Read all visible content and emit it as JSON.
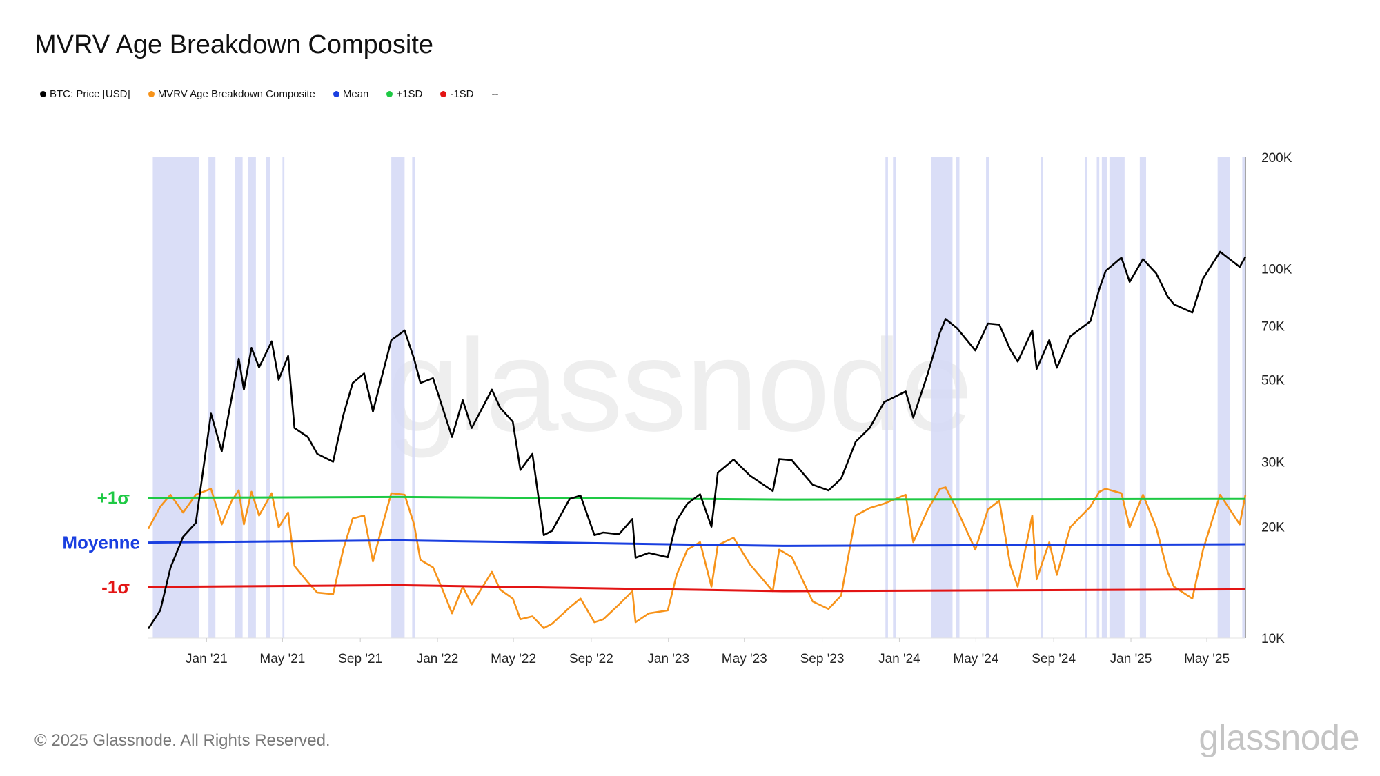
{
  "title": "MVRV Age Breakdown Composite",
  "legend": [
    {
      "label": "BTC: Price [USD]",
      "color": "#000000"
    },
    {
      "label": "MVRV Age Breakdown Composite",
      "color": "#f7931a"
    },
    {
      "label": "Mean",
      "color": "#1a3fe0"
    },
    {
      "label": "+1SD",
      "color": "#1ec944"
    },
    {
      "label": "-1SD",
      "color": "#e31414"
    },
    {
      "label": "--",
      "color": ""
    }
  ],
  "annotations": {
    "plus_sigma": "+1σ",
    "mean": "Moyenne",
    "minus_sigma": "-1σ"
  },
  "footer": "© 2025 Glassnode. All Rights Reserved.",
  "brand": "glassnode",
  "watermark": "glassnode",
  "chart_data": {
    "type": "line",
    "x_range": [
      "2020-10-01",
      "2025-07-01"
    ],
    "x_ticks": [
      {
        "label": "Jan '21",
        "date": "2021-01-01"
      },
      {
        "label": "May '21",
        "date": "2021-05-01"
      },
      {
        "label": "Sep '21",
        "date": "2021-09-01"
      },
      {
        "label": "Jan '22",
        "date": "2022-01-01"
      },
      {
        "label": "May '22",
        "date": "2022-05-01"
      },
      {
        "label": "Sep '22",
        "date": "2022-09-01"
      },
      {
        "label": "Jan '23",
        "date": "2023-01-01"
      },
      {
        "label": "May '23",
        "date": "2023-05-01"
      },
      {
        "label": "Sep '23",
        "date": "2023-09-01"
      },
      {
        "label": "Jan '24",
        "date": "2024-01-01"
      },
      {
        "label": "May '24",
        "date": "2024-05-01"
      },
      {
        "label": "Sep '24",
        "date": "2024-09-01"
      },
      {
        "label": "Jan '25",
        "date": "2025-01-01"
      },
      {
        "label": "May '25",
        "date": "2025-05-01"
      }
    ],
    "y_axis_right": {
      "scale": "log",
      "range": [
        10000,
        200000
      ],
      "ticks": [
        {
          "label": "200K",
          "value": 200000
        },
        {
          "label": "100K",
          "value": 100000
        },
        {
          "label": "70K",
          "value": 70000
        },
        {
          "label": "50K",
          "value": 50000
        },
        {
          "label": "30K",
          "value": 30000
        },
        {
          "label": "20K",
          "value": 20000
        },
        {
          "label": "10K",
          "value": 10000
        }
      ]
    },
    "composite_scale": {
      "min": 0,
      "max": 1
    },
    "series": [
      {
        "name": "BTC: Price [USD]",
        "color": "#000000",
        "points": [
          [
            "2020-10-01",
            10600
          ],
          [
            "2020-10-20",
            11900
          ],
          [
            "2020-11-05",
            15500
          ],
          [
            "2020-11-25",
            18800
          ],
          [
            "2020-12-15",
            20500
          ],
          [
            "2021-01-08",
            40500
          ],
          [
            "2021-01-25",
            32000
          ],
          [
            "2021-02-10",
            45000
          ],
          [
            "2021-02-21",
            57000
          ],
          [
            "2021-03-01",
            47000
          ],
          [
            "2021-03-13",
            61000
          ],
          [
            "2021-03-25",
            54000
          ],
          [
            "2021-04-14",
            63500
          ],
          [
            "2021-04-25",
            50000
          ],
          [
            "2021-05-10",
            58000
          ],
          [
            "2021-05-20",
            37000
          ],
          [
            "2021-06-10",
            35000
          ],
          [
            "2021-06-25",
            31500
          ],
          [
            "2021-07-20",
            30000
          ],
          [
            "2021-08-05",
            40000
          ],
          [
            "2021-08-20",
            49000
          ],
          [
            "2021-09-07",
            52000
          ],
          [
            "2021-09-21",
            41000
          ],
          [
            "2021-10-05",
            51000
          ],
          [
            "2021-10-20",
            64000
          ],
          [
            "2021-11-10",
            68000
          ],
          [
            "2021-11-25",
            57000
          ],
          [
            "2021-12-05",
            49000
          ],
          [
            "2021-12-25",
            50500
          ],
          [
            "2022-01-10",
            41500
          ],
          [
            "2022-01-24",
            35000
          ],
          [
            "2022-02-10",
            44000
          ],
          [
            "2022-02-24",
            37000
          ],
          [
            "2022-03-28",
            47000
          ],
          [
            "2022-04-10",
            42000
          ],
          [
            "2022-04-30",
            38500
          ],
          [
            "2022-05-12",
            28500
          ],
          [
            "2022-05-31",
            31500
          ],
          [
            "2022-06-18",
            19000
          ],
          [
            "2022-07-01",
            19500
          ],
          [
            "2022-07-29",
            23800
          ],
          [
            "2022-08-15",
            24300
          ],
          [
            "2022-09-06",
            19000
          ],
          [
            "2022-09-20",
            19300
          ],
          [
            "2022-10-15",
            19100
          ],
          [
            "2022-11-05",
            21000
          ],
          [
            "2022-11-10",
            16500
          ],
          [
            "2022-12-01",
            17000
          ],
          [
            "2022-12-31",
            16550
          ],
          [
            "2023-01-14",
            20800
          ],
          [
            "2023-01-31",
            23100
          ],
          [
            "2023-02-20",
            24500
          ],
          [
            "2023-03-10",
            20000
          ],
          [
            "2023-03-20",
            28000
          ],
          [
            "2023-04-14",
            30400
          ],
          [
            "2023-05-10",
            27500
          ],
          [
            "2023-06-15",
            25000
          ],
          [
            "2023-06-25",
            30500
          ],
          [
            "2023-07-15",
            30300
          ],
          [
            "2023-08-17",
            26000
          ],
          [
            "2023-09-11",
            25100
          ],
          [
            "2023-10-01",
            27000
          ],
          [
            "2023-10-24",
            34000
          ],
          [
            "2023-11-15",
            37000
          ],
          [
            "2023-12-08",
            43500
          ],
          [
            "2024-01-11",
            46500
          ],
          [
            "2024-01-23",
            39500
          ],
          [
            "2024-02-15",
            52000
          ],
          [
            "2024-03-05",
            67000
          ],
          [
            "2024-03-14",
            73000
          ],
          [
            "2024-04-01",
            69000
          ],
          [
            "2024-04-30",
            60000
          ],
          [
            "2024-05-20",
            71000
          ],
          [
            "2024-06-07",
            70500
          ],
          [
            "2024-06-24",
            60500
          ],
          [
            "2024-07-06",
            56000
          ],
          [
            "2024-07-29",
            68000
          ],
          [
            "2024-08-05",
            53500
          ],
          [
            "2024-08-25",
            64000
          ],
          [
            "2024-09-06",
            53900
          ],
          [
            "2024-09-27",
            65500
          ],
          [
            "2024-10-29",
            72000
          ],
          [
            "2024-11-12",
            88000
          ],
          [
            "2024-11-22",
            98500
          ],
          [
            "2024-12-17",
            107000
          ],
          [
            "2024-12-30",
            92000
          ],
          [
            "2025-01-20",
            106000
          ],
          [
            "2025-02-10",
            97000
          ],
          [
            "2025-02-28",
            84000
          ],
          [
            "2025-03-10",
            80000
          ],
          [
            "2025-04-08",
            76000
          ],
          [
            "2025-04-25",
            94000
          ],
          [
            "2025-05-22",
            111000
          ],
          [
            "2025-06-22",
            101000
          ],
          [
            "2025-07-01",
            107500
          ]
        ]
      },
      {
        "name": "MVRV Age Breakdown Composite",
        "color": "#f7931a",
        "points": [
          [
            "2020-10-01",
            0.69
          ],
          [
            "2020-10-20",
            0.84
          ],
          [
            "2020-11-05",
            0.92
          ],
          [
            "2020-11-25",
            0.8
          ],
          [
            "2020-12-15",
            0.92
          ],
          [
            "2021-01-08",
            0.96
          ],
          [
            "2021-01-25",
            0.72
          ],
          [
            "2021-02-10",
            0.88
          ],
          [
            "2021-02-21",
            0.95
          ],
          [
            "2021-03-01",
            0.72
          ],
          [
            "2021-03-13",
            0.94
          ],
          [
            "2021-03-25",
            0.78
          ],
          [
            "2021-04-14",
            0.93
          ],
          [
            "2021-04-25",
            0.7
          ],
          [
            "2021-05-10",
            0.8
          ],
          [
            "2021-05-20",
            0.44
          ],
          [
            "2021-06-10",
            0.33
          ],
          [
            "2021-06-25",
            0.26
          ],
          [
            "2021-07-20",
            0.25
          ],
          [
            "2021-08-05",
            0.55
          ],
          [
            "2021-08-20",
            0.76
          ],
          [
            "2021-09-07",
            0.78
          ],
          [
            "2021-09-21",
            0.47
          ],
          [
            "2021-10-05",
            0.7
          ],
          [
            "2021-10-20",
            0.93
          ],
          [
            "2021-11-10",
            0.92
          ],
          [
            "2021-11-25",
            0.72
          ],
          [
            "2021-12-05",
            0.48
          ],
          [
            "2021-12-25",
            0.43
          ],
          [
            "2022-01-10",
            0.27
          ],
          [
            "2022-01-24",
            0.12
          ],
          [
            "2022-02-10",
            0.3
          ],
          [
            "2022-02-24",
            0.18
          ],
          [
            "2022-03-28",
            0.4
          ],
          [
            "2022-04-10",
            0.28
          ],
          [
            "2022-04-30",
            0.22
          ],
          [
            "2022-05-12",
            0.08
          ],
          [
            "2022-05-31",
            0.1
          ],
          [
            "2022-06-18",
            0.02
          ],
          [
            "2022-07-01",
            0.05
          ],
          [
            "2022-07-29",
            0.16
          ],
          [
            "2022-08-15",
            0.22
          ],
          [
            "2022-09-06",
            0.06
          ],
          [
            "2022-09-20",
            0.08
          ],
          [
            "2022-10-15",
            0.18
          ],
          [
            "2022-11-05",
            0.27
          ],
          [
            "2022-11-10",
            0.06
          ],
          [
            "2022-12-01",
            0.12
          ],
          [
            "2022-12-31",
            0.14
          ],
          [
            "2023-01-14",
            0.38
          ],
          [
            "2023-01-31",
            0.55
          ],
          [
            "2023-02-20",
            0.6
          ],
          [
            "2023-03-10",
            0.3
          ],
          [
            "2023-03-20",
            0.58
          ],
          [
            "2023-04-14",
            0.63
          ],
          [
            "2023-05-10",
            0.45
          ],
          [
            "2023-06-15",
            0.27
          ],
          [
            "2023-06-25",
            0.55
          ],
          [
            "2023-07-15",
            0.5
          ],
          [
            "2023-08-17",
            0.2
          ],
          [
            "2023-09-11",
            0.15
          ],
          [
            "2023-10-01",
            0.24
          ],
          [
            "2023-10-24",
            0.78
          ],
          [
            "2023-11-15",
            0.83
          ],
          [
            "2023-12-08",
            0.86
          ],
          [
            "2024-01-11",
            0.92
          ],
          [
            "2024-01-23",
            0.6
          ],
          [
            "2024-02-15",
            0.82
          ],
          [
            "2024-03-05",
            0.96
          ],
          [
            "2024-03-14",
            0.97
          ],
          [
            "2024-04-01",
            0.82
          ],
          [
            "2024-04-30",
            0.55
          ],
          [
            "2024-05-20",
            0.82
          ],
          [
            "2024-06-07",
            0.88
          ],
          [
            "2024-06-24",
            0.45
          ],
          [
            "2024-07-06",
            0.3
          ],
          [
            "2024-07-29",
            0.78
          ],
          [
            "2024-08-05",
            0.35
          ],
          [
            "2024-08-25",
            0.6
          ],
          [
            "2024-09-06",
            0.38
          ],
          [
            "2024-09-27",
            0.7
          ],
          [
            "2024-10-29",
            0.84
          ],
          [
            "2024-11-12",
            0.94
          ],
          [
            "2024-11-22",
            0.96
          ],
          [
            "2024-12-17",
            0.93
          ],
          [
            "2024-12-30",
            0.7
          ],
          [
            "2025-01-20",
            0.92
          ],
          [
            "2025-02-10",
            0.7
          ],
          [
            "2025-02-28",
            0.4
          ],
          [
            "2025-03-10",
            0.3
          ],
          [
            "2025-04-08",
            0.22
          ],
          [
            "2025-04-25",
            0.55
          ],
          [
            "2025-05-22",
            0.92
          ],
          [
            "2025-06-22",
            0.72
          ],
          [
            "2025-07-01",
            0.92
          ]
        ]
      },
      {
        "name": "Mean",
        "color": "#1a3fe0",
        "points": [
          [
            "2020-10-01",
            0.597
          ],
          [
            "2021-11-01",
            0.612
          ],
          [
            "2023-07-01",
            0.575
          ],
          [
            "2025-07-01",
            0.586
          ]
        ]
      },
      {
        "name": "+1SD",
        "color": "#1ec944",
        "points": [
          [
            "2020-10-01",
            0.899
          ],
          [
            "2021-11-01",
            0.905
          ],
          [
            "2023-07-01",
            0.888
          ],
          [
            "2025-07-01",
            0.892
          ]
        ]
      },
      {
        "name": "-1SD",
        "color": "#e31414",
        "points": [
          [
            "2020-10-01",
            0.298
          ],
          [
            "2021-11-01",
            0.31
          ],
          [
            "2023-07-01",
            0.27
          ],
          [
            "2025-07-01",
            0.282
          ]
        ]
      }
    ],
    "highlight_bands": [
      [
        "2020-10-08",
        "2020-12-20"
      ],
      [
        "2021-01-04",
        "2021-01-15"
      ],
      [
        "2021-02-15",
        "2021-02-27"
      ],
      [
        "2021-03-08",
        "2021-03-20"
      ],
      [
        "2021-04-05",
        "2021-04-12"
      ],
      [
        "2021-05-01",
        "2021-05-04"
      ],
      [
        "2021-10-20",
        "2021-11-10"
      ],
      [
        "2021-11-22",
        "2021-11-26"
      ],
      [
        "2023-12-10",
        "2023-12-14"
      ],
      [
        "2023-12-22",
        "2023-12-27"
      ],
      [
        "2024-02-20",
        "2024-03-25"
      ],
      [
        "2024-03-30",
        "2024-04-05"
      ],
      [
        "2024-05-17",
        "2024-05-22"
      ],
      [
        "2024-08-12",
        "2024-08-15"
      ],
      [
        "2024-10-21",
        "2024-10-24"
      ],
      [
        "2024-11-08",
        "2024-11-12"
      ],
      [
        "2024-11-16",
        "2024-11-24"
      ],
      [
        "2024-11-28",
        "2024-12-22"
      ],
      [
        "2025-01-15",
        "2025-01-25"
      ],
      [
        "2025-05-18",
        "2025-06-06"
      ],
      [
        "2025-06-26",
        "2025-06-30"
      ]
    ]
  }
}
